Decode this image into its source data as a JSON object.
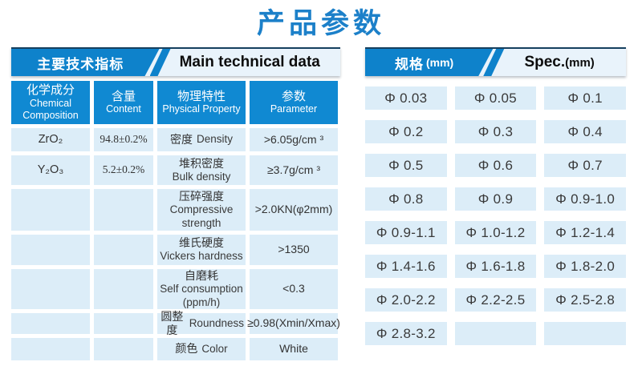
{
  "page": {
    "title": "产品参数"
  },
  "colors": {
    "accent_blue": "#0e82cb",
    "column_header_blue": "#1089d2",
    "light_cell_blue": "#dcedf8",
    "title_blue": "#1c80c9"
  },
  "left_table": {
    "header": {
      "zh": "主要技术指标",
      "en": "Main technical data"
    },
    "columns": [
      {
        "zh": "化学成分",
        "en": "Chemical Composition"
      },
      {
        "zh": "含量",
        "en": "Content"
      },
      {
        "zh": "物理特性",
        "en": "Physical Property"
      },
      {
        "zh": "参数",
        "en": "Parameter"
      }
    ],
    "chemical_rows": [
      {
        "composition": "ZrO₂",
        "content": "94.8±0.2%"
      },
      {
        "composition": "Y₂O₃",
        "content": "5.2±0.2%"
      }
    ],
    "property_rows": [
      {
        "zh": "密度",
        "en": "Density",
        "value": ">6.05g/cm ³"
      },
      {
        "zh": "堆积密度",
        "en": "Bulk density",
        "value": "≥3.7g/cm ³"
      },
      {
        "zh": "压碎强度",
        "en": "Compressive strength",
        "value": ">2.0KN(φ2mm)"
      },
      {
        "zh": "维氏硬度",
        "en": "Vickers hardness",
        "value": ">1350"
      },
      {
        "zh": "自磨耗",
        "en": "Self consumption",
        "en2": "(ppm/h)",
        "value": "<0.3"
      },
      {
        "zh": "圆整度",
        "en": "Roundness",
        "value": "≥0.98(Xmin/Xmax)"
      },
      {
        "zh": "颜色",
        "en": "Color",
        "value": "White"
      }
    ]
  },
  "spec_table": {
    "header": {
      "zh": "规格",
      "zh_unit": "(mm)",
      "en": "Spec.",
      "en_unit": "(mm)"
    },
    "cells": [
      [
        "Φ 0.03",
        "Φ 0.05",
        "Φ 0.1"
      ],
      [
        "Φ 0.2",
        "Φ 0.3",
        "Φ 0.4"
      ],
      [
        "Φ 0.5",
        "Φ 0.6",
        "Φ 0.7"
      ],
      [
        "Φ 0.8",
        "Φ 0.9",
        "Φ 0.9-1.0"
      ],
      [
        "Φ 0.9-1.1",
        "Φ 1.0-1.2",
        "Φ 1.2-1.4"
      ],
      [
        "Φ 1.4-1.6",
        "Φ 1.6-1.8",
        "Φ 1.8-2.0"
      ],
      [
        "Φ 2.0-2.2",
        "Φ 2.2-2.5",
        "Φ 2.5-2.8"
      ],
      [
        "Φ 2.8-3.2",
        "",
        ""
      ]
    ]
  }
}
